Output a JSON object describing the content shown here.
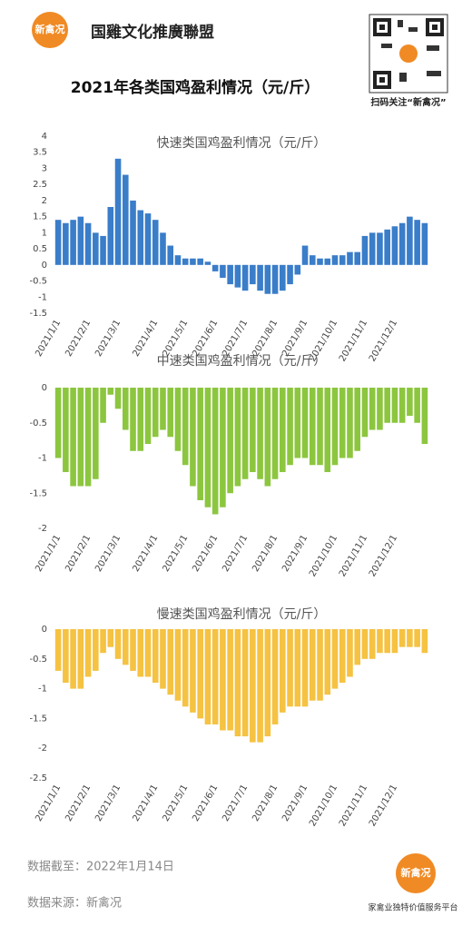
{
  "header": {
    "logo": "新禽况",
    "brand": "国雞文化推廣聯盟",
    "qr_caption": "扫码关注“新禽况”",
    "title": "2021年各类国鸡盈利情况（元/斤）"
  },
  "chart_data": [
    {
      "type": "bar",
      "title": "快速类国鸡盈利情况（元/斤）",
      "color": "#3a7dc9",
      "grid": false,
      "categories": [
        "2021/1/1",
        null,
        null,
        null,
        "2021/2/1",
        null,
        null,
        null,
        "2021/3/1",
        null,
        null,
        null,
        null,
        "2021/4/1",
        null,
        null,
        null,
        "2021/5/1",
        null,
        null,
        null,
        "2021/6/1",
        null,
        null,
        null,
        "2021/7/1",
        null,
        null,
        null,
        "2021/8/1",
        null,
        null,
        null,
        "2021/9/1",
        null,
        null,
        null,
        "2021/10/1",
        null,
        null,
        null,
        "2021/11/1",
        null,
        null,
        null,
        "2021/12/1",
        null,
        null,
        null,
        null
      ],
      "values": [
        1.4,
        1.3,
        1.4,
        1.5,
        1.3,
        1.0,
        0.9,
        1.8,
        3.3,
        2.8,
        2.0,
        1.7,
        1.6,
        1.4,
        1.0,
        0.6,
        0.3,
        0.2,
        0.2,
        0.2,
        0.1,
        -0.2,
        -0.4,
        -0.6,
        -0.7,
        -0.8,
        -0.6,
        -0.8,
        -0.9,
        -0.9,
        -0.8,
        -0.6,
        -0.3,
        0.6,
        0.3,
        0.2,
        0.2,
        0.3,
        0.3,
        0.4,
        0.4,
        0.9,
        1.0,
        1.0,
        1.1,
        1.2,
        1.3,
        1.5,
        1.4,
        1.3
      ],
      "ylim": [
        -1.5,
        4
      ],
      "yticks": [
        -1.5,
        -1,
        -0.5,
        0,
        0.5,
        1,
        1.5,
        2,
        2.5,
        3,
        3.5,
        4
      ]
    },
    {
      "type": "bar",
      "title": "中速类国鸡盈利情况（元/斤）",
      "color": "#8cc63f",
      "grid": false,
      "categories": [
        "2021/1/1",
        null,
        null,
        null,
        "2021/2/1",
        null,
        null,
        null,
        "2021/3/1",
        null,
        null,
        null,
        null,
        "2021/4/1",
        null,
        null,
        null,
        "2021/5/1",
        null,
        null,
        null,
        "2021/6/1",
        null,
        null,
        null,
        "2021/7/1",
        null,
        null,
        null,
        "2021/8/1",
        null,
        null,
        null,
        "2021/9/1",
        null,
        null,
        null,
        "2021/10/1",
        null,
        null,
        null,
        "2021/11/1",
        null,
        null,
        null,
        "2021/12/1",
        null,
        null,
        null,
        null
      ],
      "values": [
        -1.0,
        -1.2,
        -1.4,
        -1.4,
        -1.4,
        -1.3,
        -0.5,
        -0.1,
        -0.3,
        -0.6,
        -0.9,
        -0.9,
        -0.8,
        -0.7,
        -0.6,
        -0.7,
        -0.9,
        -1.1,
        -1.4,
        -1.6,
        -1.7,
        -1.8,
        -1.7,
        -1.5,
        -1.4,
        -1.3,
        -1.2,
        -1.3,
        -1.4,
        -1.3,
        -1.2,
        -1.1,
        -1.0,
        -1.0,
        -1.1,
        -1.1,
        -1.2,
        -1.1,
        -1.0,
        -1.0,
        -0.9,
        -0.7,
        -0.6,
        -0.6,
        -0.5,
        -0.5,
        -0.5,
        -0.4,
        -0.5,
        -0.8
      ],
      "ylim": [
        -2,
        0
      ],
      "yticks": [
        -2,
        -1.5,
        -1,
        -0.5,
        0
      ]
    },
    {
      "type": "bar",
      "title": "慢速类国鸡盈利情况（元/斤）",
      "color": "#f5c242",
      "grid": false,
      "categories": [
        "2021/1/1",
        null,
        null,
        null,
        "2021/2/1",
        null,
        null,
        null,
        "2021/3/1",
        null,
        null,
        null,
        null,
        "2021/4/1",
        null,
        null,
        null,
        "2021/5/1",
        null,
        null,
        null,
        "2021/6/1",
        null,
        null,
        null,
        "2021/7/1",
        null,
        null,
        null,
        "2021/8/1",
        null,
        null,
        null,
        "2021/9/1",
        null,
        null,
        null,
        "2021/10/1",
        null,
        null,
        null,
        "2021/11/1",
        null,
        null,
        null,
        "2021/12/1",
        null,
        null,
        null,
        null
      ],
      "values": [
        -0.7,
        -0.9,
        -1.0,
        -1.0,
        -0.8,
        -0.7,
        -0.4,
        -0.3,
        -0.5,
        -0.6,
        -0.7,
        -0.8,
        -0.8,
        -0.9,
        -1.0,
        -1.1,
        -1.2,
        -1.3,
        -1.4,
        -1.5,
        -1.6,
        -1.6,
        -1.7,
        -1.7,
        -1.8,
        -1.8,
        -1.9,
        -1.9,
        -1.8,
        -1.6,
        -1.4,
        -1.3,
        -1.3,
        -1.3,
        -1.2,
        -1.2,
        -1.1,
        -1.0,
        -0.9,
        -0.8,
        -0.6,
        -0.5,
        -0.5,
        -0.4,
        -0.4,
        -0.4,
        -0.3,
        -0.3,
        -0.3,
        -0.4
      ],
      "ylim": [
        -2.5,
        0
      ],
      "yticks": [
        -2.5,
        -2,
        -1.5,
        -1,
        -0.5,
        0
      ]
    }
  ],
  "footer": {
    "as_of": "数据截至：2022年1月14日",
    "source": "数据来源：新禽况",
    "logo": "新禽况",
    "slogan": "家禽业独特价值服务平台"
  }
}
